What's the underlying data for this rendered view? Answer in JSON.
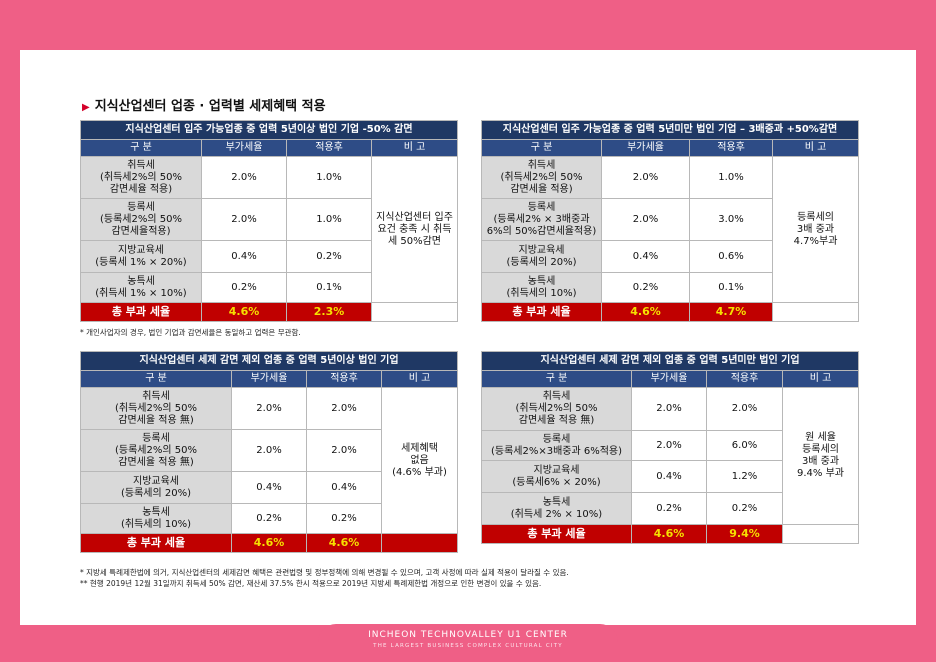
{
  "heading": "지식산업센터 업종 · 업력별 세제혜택 적용",
  "t1": {
    "title": "지식산업센터 입주 가능업종 중 업력 5년이상 법인 기업 -50% 감면",
    "headers": [
      "구 분",
      "부가세율",
      "적용후",
      "비 고"
    ],
    "rows": [
      [
        "취득세\n(취득세2%의 50%\n감면세율 적용)",
        "2.0%",
        "1.0%"
      ],
      [
        "등록세\n(등록세2%의 50%\n감면세율적용)",
        "2.0%",
        "1.0%"
      ],
      [
        "지방교육세\n(등록세 1% × 20%)",
        "0.4%",
        "0.2%"
      ],
      [
        "농특세\n(취득세 1% × 10%)",
        "0.2%",
        "0.1%"
      ]
    ],
    "note": "지식산업센터 입주\n요건 충족 시 취득\n세 50%감면",
    "total": [
      "총 부과 세율",
      "4.6%",
      "2.3%"
    ]
  },
  "t2": {
    "title": "지식산업센터 입주 가능업종 중 업력 5년미만 법인 기업 – 3배중과 +50%감면",
    "headers": [
      "구 분",
      "부가세율",
      "적용후",
      "비 고"
    ],
    "rows": [
      [
        "취득세\n(취득세2%의 50%\n감면세율 적용)",
        "2.0%",
        "1.0%"
      ],
      [
        "등록세\n(등록세2% × 3배중과\n6%의 50%감면세율적용)",
        "2.0%",
        "3.0%"
      ],
      [
        "지방교육세\n(등록세의 20%)",
        "0.4%",
        "0.6%"
      ],
      [
        "농특세\n(취득세의 10%)",
        "0.2%",
        "0.1%"
      ]
    ],
    "note": "등록세의\n3배 중과\n4.7%부과",
    "total": [
      "총 부과 세율",
      "4.6%",
      "4.7%"
    ]
  },
  "note1": "* 개인사업자의 경우, 법인 기업과 감면세율은 동일하고 업력은 무관함.",
  "t3": {
    "title": "지식산업센터 세제 감면 제외 업종 중 업력 5년이상 법인 기업",
    "headers": [
      "구 분",
      "부가세율",
      "적용후",
      "비 고"
    ],
    "rows": [
      [
        "취득세\n(취득세2%의 50%\n감면세율 적용 無)",
        "2.0%",
        "2.0%"
      ],
      [
        "등록세\n(등록세2%의 50%\n감면세율 적용 無)",
        "2.0%",
        "2.0%"
      ],
      [
        "지방교육세\n(등록세의 20%)",
        "0.4%",
        "0.4%"
      ],
      [
        "농특세\n(취득세의 10%)",
        "0.2%",
        "0.2%"
      ]
    ],
    "note": "세제혜택\n없음\n(4.6% 부과)",
    "total": [
      "총 부과 세율",
      "4.6%",
      "4.6%"
    ]
  },
  "t4": {
    "title": "지식산업센터 세제 감면 제외 업종 중 업력 5년미만 법인 기업",
    "headers": [
      "구 분",
      "부가세율",
      "적용후",
      "비 고"
    ],
    "rows": [
      [
        "취득세\n(취득세2%의 50%\n감면세율 적용 無)",
        "2.0%",
        "2.0%"
      ],
      [
        "등록세\n(등록세2%×3배중과 6%적용)",
        "2.0%",
        "6.0%"
      ],
      [
        "지방교육세\n(등록세6% × 20%)",
        "0.4%",
        "1.2%"
      ],
      [
        "농특세\n(취득세 2% × 10%)",
        "0.2%",
        "0.2%"
      ]
    ],
    "note": "원 세율\n등록세의\n3배 중과\n9.4% 부과",
    "total": [
      "총 부과 세율",
      "4.6%",
      "9.4%"
    ]
  },
  "footnotes": [
    "* 지방세 특례제한법에 의거, 지식산업센터의 세제감면 혜택은 관련법령 및 정부정책에 의해 변경될 수 있으며, 고객 사정에 따라 실제 적용이 달라질 수 있음.",
    "** 현행 2019년 12월 31일까지 취득세 50% 감면, 재산세 37.5% 한시 적용으로 2019년 지방세 특례제한법 개정으로 인한 변경이 있을 수 있음."
  ],
  "footer": {
    "title": "INCHEON TECHNOVALLEY U1 CENTER",
    "subtitle": "THE LARGEST BUSINESS COMPLEX CULTURAL CITY"
  },
  "colors": {
    "frame": "#ef5f86",
    "title_bar": "#1f3864",
    "header_bar": "#2e4c86",
    "total_bar": "#c00000",
    "total_text": "#f6e000"
  }
}
